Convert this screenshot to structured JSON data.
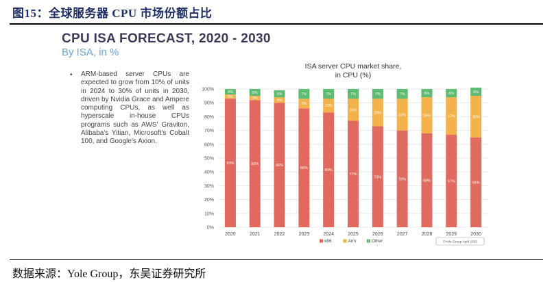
{
  "figure": {
    "title": "图15：全球服务器 CPU 市场份额占比",
    "source": "数据来源：Yole Group，东吴证券研究所"
  },
  "slide": {
    "title": "CPU ISA FORECAST, 2020 - 2030",
    "subtitle": "By ISA, in %",
    "bullet_marker": "•",
    "bullet": "ARM-based server CPUs are expected to grow from 10% of units in 2024 to 30% of units in 2030, driven by Nvidia Grace and Ampere computing CPUs, as well as hyperscale in-house CPUs programs such as AWS' Graviton, Alibaba's Yitian, Microsoft's Cobalt 100, and Google's Axion."
  },
  "chart_data": {
    "type": "bar",
    "stacked": true,
    "title": "ISA server CPU market share,",
    "subtitle": "in CPU (%)",
    "categories": [
      "2020",
      "2021",
      "2022",
      "2023",
      "2024",
      "2025",
      "2026",
      "2027",
      "2028",
      "2029",
      "2030"
    ],
    "series": [
      {
        "name": "x86",
        "color": "#e06a5e",
        "values": [
          93,
          92,
          90,
          86,
          83,
          77,
          73,
          70,
          68,
          67,
          65
        ]
      },
      {
        "name": "Arm",
        "color": "#f3b24a",
        "values": [
          3,
          3,
          4,
          7,
          10,
          16,
          20,
          23,
          26,
          27,
          30
        ]
      },
      {
        "name": "Other",
        "color": "#5dbb72",
        "values": [
          4,
          5,
          5,
          7,
          7,
          7,
          7,
          7,
          6,
          6,
          6
        ]
      }
    ],
    "ylim": [
      0,
      100
    ],
    "yticks": [
      "0%",
      "10%",
      "20%",
      "30%",
      "40%",
      "50%",
      "60%",
      "70%",
      "80%",
      "90%",
      "100%"
    ],
    "legend_position": "bottom-center",
    "watermark": "©Yole Group April 2025"
  }
}
